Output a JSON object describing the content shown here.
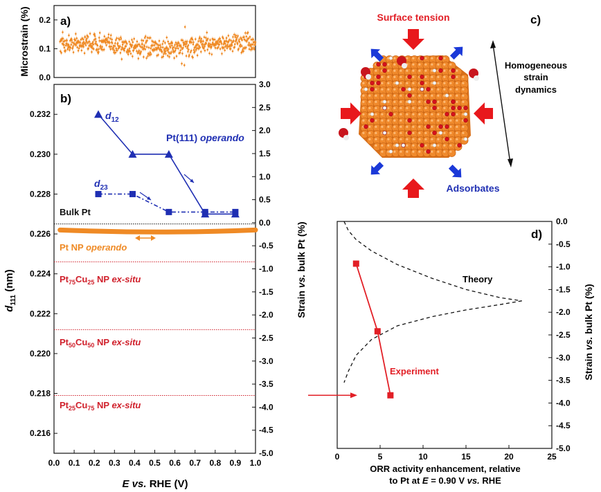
{
  "colors": {
    "orange": "#ef8a25",
    "blue": "#1f2fb3",
    "red": "#e21f26",
    "crimson": "#d0202b",
    "arrow_red": "#e8181c",
    "arrow_blue": "#1b39d8",
    "black": "#111111"
  },
  "chart_data": [
    {
      "panel": "a)",
      "type": "scatter",
      "ylabel": "Microstrain (%)",
      "ylim": [
        0.0,
        0.25
      ],
      "yticks": [
        "0.0",
        "0.1",
        "0.2"
      ],
      "xlim": [
        0.0,
        1.0
      ],
      "series": [
        {
          "name": "microstrain",
          "note": "~600 noisy points between 0.03 and 1.0 V, mean about 0.11 %, spread about 0.03 %",
          "x_range": [
            0.03,
            1.0
          ],
          "y_mean": 0.11,
          "y_spread": 0.03,
          "points": 600
        }
      ]
    },
    {
      "panel": "b)",
      "type": "line",
      "xlabel_main": "E",
      "xlabel_vs": "vs.",
      "xlabel_tail": "RHE (V)",
      "ylabel_main": "d",
      "ylabel_sub": "111",
      "ylabel_unit": "(nm)",
      "y2label_main": "Strain",
      "y2label_vs": "vs.",
      "y2label_tail": "bulk Pt (%)",
      "xlim": [
        0.0,
        1.0
      ],
      "ylim": [
        0.215,
        0.2335
      ],
      "xticks": [
        "0.0",
        "0.1",
        "0.2",
        "0.3",
        "0.4",
        "0.5",
        "0.6",
        "0.7",
        "0.8",
        "0.9",
        "1.0"
      ],
      "yticks": [
        "0.216",
        "0.218",
        "0.220",
        "0.222",
        "0.224",
        "0.226",
        "0.228",
        "0.230",
        "0.232"
      ],
      "y2ticks": [
        "3.0",
        "2.5",
        "2.0",
        "1.5",
        "1.0",
        "0.5",
        "0.0",
        "-0.5",
        "-1.0",
        "-1.5",
        "-2.0",
        "-2.5",
        "-3.0",
        "-3.5",
        "-4.0",
        "-4.5",
        "-5.0"
      ],
      "series": [
        {
          "name": "d12",
          "label_main": "d",
          "label_sub": "12",
          "marker": "triangle",
          "x": [
            0.22,
            0.39,
            0.57,
            0.75,
            0.9
          ],
          "y": [
            0.232,
            0.23,
            0.23,
            0.227,
            0.227
          ]
        },
        {
          "name": "d23",
          "label_main": "d",
          "label_sub": "23",
          "marker": "square",
          "x": [
            0.22,
            0.39,
            0.57,
            0.75,
            0.9
          ],
          "y": [
            0.228,
            0.228,
            0.2271,
            0.2271,
            0.2271
          ]
        },
        {
          "name": "Pt NP operando",
          "type": "band",
          "x_range": [
            0.03,
            1.0
          ],
          "y_start": 0.2262,
          "y_middle": 0.2261,
          "y_end": 0.2262
        }
      ],
      "reference_lines": [
        {
          "name": "Bulk Pt",
          "y": 0.2265
        },
        {
          "name": "Pt75Cu25",
          "y": 0.2246
        },
        {
          "name": "Pt50Cu50",
          "y": 0.2212
        },
        {
          "name": "Pt25Cu75",
          "y": 0.2179
        }
      ],
      "labels": {
        "pt111_main": "Pt(111)",
        "pt111_tail": "operando",
        "bulk": "Bulk Pt",
        "ptnp_main": "Pt NP",
        "ptnp_tail": "operando",
        "alloy_75": {
          "a": "Pt",
          "b": "75",
          "c": "Cu",
          "d": "25",
          "e": " NP",
          "f": "ex-situ"
        },
        "alloy_50": {
          "a": "Pt",
          "b": "50",
          "c": "Cu",
          "d": "50",
          "e": " NP",
          "f": "ex-situ"
        },
        "alloy_25": {
          "a": "Pt",
          "b": "25",
          "c": "Cu",
          "d": "75",
          "e": " NP",
          "f": "ex-situ"
        }
      }
    },
    {
      "panel": "d)",
      "type": "line",
      "xlabel_line1": "ORR activity enhancement, relative",
      "xlabel_line2_a": "to Pt at",
      "xlabel_line2_b": "E",
      "xlabel_line2_c": "= 0.90 V",
      "xlabel_line2_d": "vs.",
      "xlabel_line2_e": "RHE",
      "ylabel_main": "Strain",
      "ylabel_vs": "vs.",
      "ylabel_tail": "bulk Pt (%)",
      "xlim": [
        0,
        25
      ],
      "ylim": [
        -5.0,
        0.0
      ],
      "xticks": [
        "0",
        "5",
        "10",
        "15",
        "20",
        "25"
      ],
      "yticks": [
        "0.0",
        "-0.5",
        "-1.0",
        "-1.5",
        "-2.0",
        "-2.5",
        "-3.0",
        "-3.5",
        "-4.0",
        "-4.5",
        "-5.0"
      ],
      "series": [
        {
          "name": "Theory",
          "style": "dashed",
          "upper_branch": {
            "x": [
              0.8,
              1.3,
              2.2,
              4,
              7,
              11,
              15,
              19,
              21.5
            ],
            "y": [
              0.0,
              -0.2,
              -0.4,
              -0.65,
              -0.95,
              -1.25,
              -1.5,
              -1.68,
              -1.75
            ]
          },
          "lower_branch": {
            "x": [
              21.5,
              19,
              15,
              11,
              7,
              4,
              2.2,
              1.3,
              0.8
            ],
            "y": [
              -1.75,
              -1.83,
              -1.95,
              -2.1,
              -2.3,
              -2.6,
              -2.95,
              -3.3,
              -3.55
            ]
          }
        },
        {
          "name": "Experiment",
          "marker": "square",
          "x": [
            2.2,
            4.7,
            6.2
          ],
          "y": [
            -0.93,
            -2.42,
            -3.83
          ]
        }
      ],
      "arrow_target_strain": -3.83
    }
  ],
  "panel_c": {
    "label": "c)",
    "surface_tension": "Surface tension",
    "adsorbates": "Adsorbates",
    "homogeneous_l1": "Homogeneous",
    "homogeneous_l2": "strain",
    "homogeneous_l3": "dynamics"
  }
}
